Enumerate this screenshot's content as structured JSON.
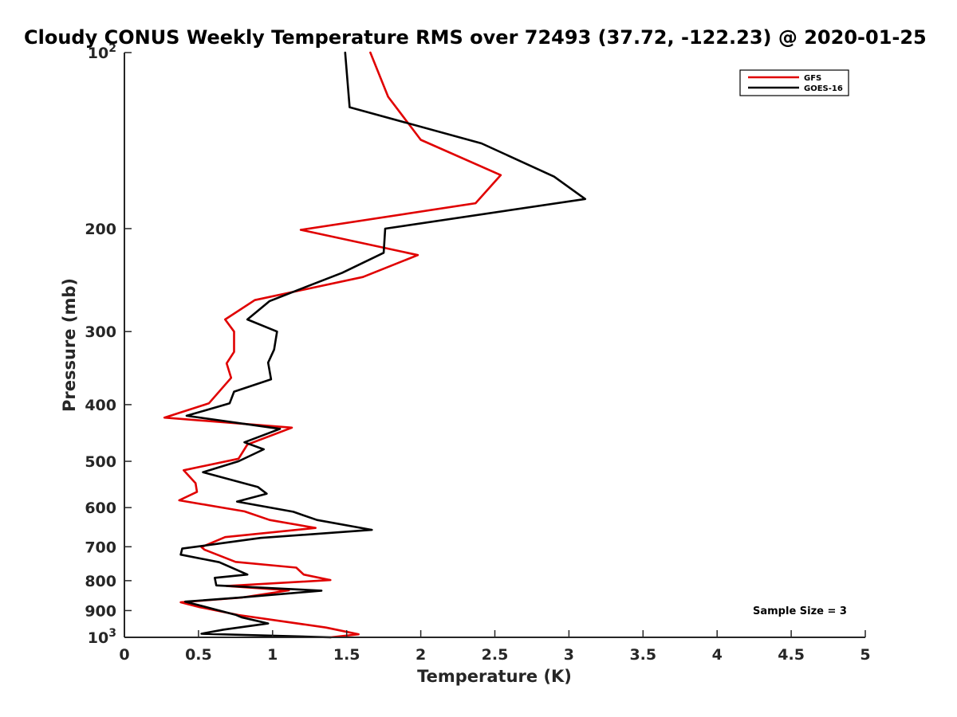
{
  "chart_data": {
    "type": "line",
    "title": "Cloudy CONUS Weekly Temperature RMS over 72493 (37.72, -122.23) @ 2020-01-25",
    "xlabel": "Temperature (K)",
    "ylabel": "Pressure (mb)",
    "xlim": [
      0,
      5
    ],
    "ylim": [
      100,
      1000
    ],
    "y_scale": "log",
    "y_reversed": true,
    "x_ticks": [
      "0",
      "0.5",
      "1",
      "1.5",
      "2",
      "2.5",
      "3",
      "3.5",
      "4",
      "4.5",
      "5"
    ],
    "y_ticks": [
      {
        "value": 100,
        "label": "10",
        "sup": "2"
      },
      {
        "value": 200,
        "label": "200",
        "sup": ""
      },
      {
        "value": 300,
        "label": "300",
        "sup": ""
      },
      {
        "value": 400,
        "label": "400",
        "sup": ""
      },
      {
        "value": 500,
        "label": "500",
        "sup": ""
      },
      {
        "value": 600,
        "label": "600",
        "sup": ""
      },
      {
        "value": 700,
        "label": "700",
        "sup": ""
      },
      {
        "value": 800,
        "label": "800",
        "sup": ""
      },
      {
        "value": 900,
        "label": "900",
        "sup": ""
      },
      {
        "value": 1000,
        "label": "10",
        "sup": "3"
      }
    ],
    "legend_position": "top-right",
    "grid": false,
    "annotation": "Sample Size = 3",
    "series": [
      {
        "name": "GFS",
        "color": "#e00000",
        "points": [
          [
            1.66,
            100
          ],
          [
            1.78,
            119
          ],
          [
            2.0,
            141
          ],
          [
            2.54,
            162
          ],
          [
            2.37,
            181
          ],
          [
            1.19,
            201
          ],
          [
            1.98,
            222
          ],
          [
            1.61,
            242
          ],
          [
            0.88,
            265
          ],
          [
            0.68,
            286
          ],
          [
            0.74,
            300
          ],
          [
            0.74,
            325
          ],
          [
            0.69,
            340
          ],
          [
            0.72,
            360
          ],
          [
            0.57,
            398
          ],
          [
            0.27,
            421
          ],
          [
            1.13,
            438
          ],
          [
            0.83,
            468
          ],
          [
            0.77,
            495
          ],
          [
            0.4,
            518
          ],
          [
            0.48,
            545
          ],
          [
            0.49,
            564
          ],
          [
            0.37,
            583
          ],
          [
            0.81,
            609
          ],
          [
            0.98,
            630
          ],
          [
            1.29,
            650
          ],
          [
            0.68,
            674
          ],
          [
            0.52,
            701
          ],
          [
            0.54,
            708
          ],
          [
            0.75,
            743
          ],
          [
            1.16,
            760
          ],
          [
            1.21,
            781
          ],
          [
            1.39,
            798
          ],
          [
            0.69,
            817
          ],
          [
            1.11,
            831
          ],
          [
            0.79,
            855
          ],
          [
            0.38,
            871
          ],
          [
            0.5,
            887
          ],
          [
            0.77,
            916
          ],
          [
            1.36,
            962
          ],
          [
            1.58,
            988
          ],
          [
            1.39,
            1000
          ]
        ]
      },
      {
        "name": "GOES-16",
        "color": "#000000",
        "points": [
          [
            1.49,
            100
          ],
          [
            1.52,
            124
          ],
          [
            2.41,
            143
          ],
          [
            2.9,
            163
          ],
          [
            3.11,
            178
          ],
          [
            1.76,
            200
          ],
          [
            1.75,
            220
          ],
          [
            1.47,
            238
          ],
          [
            0.98,
            266
          ],
          [
            0.83,
            286
          ],
          [
            1.03,
            300
          ],
          [
            1.01,
            322
          ],
          [
            0.97,
            339
          ],
          [
            0.99,
            362
          ],
          [
            0.74,
            380
          ],
          [
            0.71,
            398
          ],
          [
            0.42,
            418
          ],
          [
            1.05,
            440
          ],
          [
            0.81,
            464
          ],
          [
            0.94,
            477
          ],
          [
            0.77,
            500
          ],
          [
            0.53,
            522
          ],
          [
            0.9,
            553
          ],
          [
            0.96,
            568
          ],
          [
            0.76,
            586
          ],
          [
            1.14,
            610
          ],
          [
            1.3,
            630
          ],
          [
            1.67,
            655
          ],
          [
            0.92,
            676
          ],
          [
            0.59,
            694
          ],
          [
            0.39,
            705
          ],
          [
            0.38,
            722
          ],
          [
            0.64,
            744
          ],
          [
            0.83,
            781
          ],
          [
            0.61,
            791
          ],
          [
            0.62,
            815
          ],
          [
            1.33,
            832
          ],
          [
            0.78,
            855
          ],
          [
            0.41,
            869
          ],
          [
            0.75,
            915
          ],
          [
            0.79,
            924
          ],
          [
            0.97,
            947
          ],
          [
            0.67,
            970
          ],
          [
            0.52,
            986
          ],
          [
            1.39,
            1000
          ]
        ]
      }
    ]
  }
}
